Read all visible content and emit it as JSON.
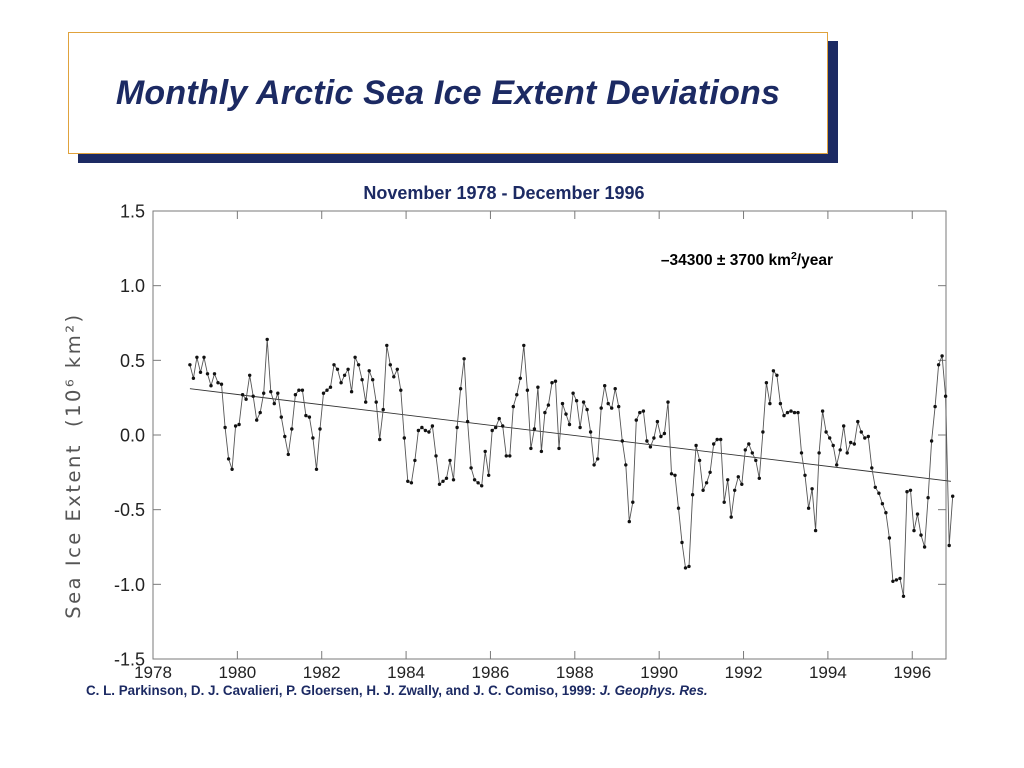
{
  "slide": {
    "title": "Monthly Arctic Sea Ice Extent Deviations",
    "subtitle": "November 1978 - December 1996",
    "citation_authors": "C. L. Parkinson, D. J. Cavalieri, P. Gloersen, H. J. Zwally, and J. C. Comiso, 1999: ",
    "citation_journal": "J. Geophys. Res.",
    "colors": {
      "title": "#1c2a63",
      "title_border": "#e0a23c",
      "title_shadow": "#1c2a63"
    }
  },
  "chart_data": {
    "type": "line",
    "title": "November 1978 - December 1996",
    "ylabel_main": "Sea Ice Extent",
    "ylabel_unit": "(10⁶ km²)",
    "annotation": {
      "prefix": "–34300 ± 3700 km",
      "sup": "2",
      "suffix": "/year"
    },
    "xlim": [
      1978,
      1996.8
    ],
    "ylim": [
      -1.5,
      1.5
    ],
    "x_ticks": [
      1978,
      1980,
      1982,
      1984,
      1986,
      1988,
      1990,
      1992,
      1994,
      1996
    ],
    "x_tick_labels": [
      "1978",
      "1980",
      "1982",
      "1984",
      "1986",
      "1988",
      "1990",
      "1992",
      "1994",
      "1996"
    ],
    "y_ticks": [
      1.5,
      1.0,
      0.5,
      0.0,
      -0.5,
      -1.0,
      -1.5
    ],
    "y_tick_labels": [
      "1.5",
      "1.0",
      "0.5",
      "0.0",
      "-0.5",
      "-1.0",
      "-1.5"
    ],
    "grid": false,
    "start_year": 1978.875,
    "month_step": 0.0833333,
    "series": [
      {
        "values": [
          0.47,
          0.38,
          0.52,
          0.42,
          0.52,
          0.41,
          0.33,
          0.41,
          0.35,
          0.34,
          0.05,
          -0.16,
          -0.23,
          0.06,
          0.07,
          0.27,
          0.24,
          0.4,
          0.26,
          0.1,
          0.15,
          0.28,
          0.64,
          0.29,
          0.21,
          0.28,
          0.12,
          -0.01,
          -0.13,
          0.04,
          0.27,
          0.3,
          0.3,
          0.13,
          0.12,
          -0.02,
          -0.23,
          0.04,
          0.28,
          0.3,
          0.32,
          0.47,
          0.44,
          0.35,
          0.4,
          0.44,
          0.29,
          0.52,
          0.47,
          0.37,
          0.22,
          0.43,
          0.37,
          0.22,
          -0.03,
          0.17,
          0.6,
          0.47,
          0.39,
          0.44,
          0.3,
          -0.02,
          -0.31,
          -0.32,
          -0.17,
          0.03,
          0.05,
          0.03,
          0.02,
          0.06,
          -0.14,
          -0.33,
          -0.31,
          -0.29,
          -0.17,
          -0.3,
          0.05,
          0.31,
          0.51,
          0.09,
          -0.22,
          -0.3,
          -0.32,
          -0.34,
          -0.11,
          -0.27,
          0.03,
          0.05,
          0.11,
          0.06,
          -0.14,
          -0.14,
          0.19,
          0.27,
          0.38,
          0.6,
          0.3,
          -0.09,
          0.04,
          0.32,
          -0.11,
          0.15,
          0.2,
          0.35,
          0.36,
          -0.09,
          0.21,
          0.14,
          0.07,
          0.28,
          0.23,
          0.05,
          0.22,
          0.17,
          0.02,
          -0.2,
          -0.16,
          0.18,
          0.33,
          0.21,
          0.18,
          0.31,
          0.19,
          -0.04,
          -0.2,
          -0.58,
          -0.45,
          0.1,
          0.15,
          0.16,
          -0.04,
          -0.08,
          -0.02,
          0.09,
          -0.01,
          0.01,
          0.22,
          -0.26,
          -0.27,
          -0.49,
          -0.72,
          -0.89,
          -0.88,
          -0.4,
          -0.07,
          -0.17,
          -0.37,
          -0.32,
          -0.25,
          -0.06,
          -0.03,
          -0.03,
          -0.45,
          -0.3,
          -0.55,
          -0.37,
          -0.28,
          -0.33,
          -0.1,
          -0.06,
          -0.12,
          -0.17,
          -0.29,
          0.02,
          0.35,
          0.21,
          0.43,
          0.4,
          0.21,
          0.13,
          0.15,
          0.16,
          0.15,
          0.15,
          -0.12,
          -0.27,
          -0.49,
          -0.36,
          -0.64,
          -0.12,
          0.16,
          0.02,
          -0.02,
          -0.07,
          -0.2,
          -0.1,
          0.06,
          -0.12,
          -0.05,
          -0.06,
          0.09,
          0.02,
          -0.02,
          -0.01,
          -0.22,
          -0.35,
          -0.39,
          -0.46,
          -0.52,
          -0.69,
          -0.98,
          -0.97,
          -0.96,
          -1.08,
          -0.38,
          -0.37,
          -0.64,
          -0.53,
          -0.67,
          -0.75,
          -0.42,
          -0.04,
          0.19,
          0.47,
          0.53,
          0.26,
          -0.74,
          -0.41
        ]
      }
    ],
    "trend": {
      "x": [
        1978.875,
        1996.917
      ],
      "y": [
        0.31,
        -0.31
      ]
    }
  }
}
